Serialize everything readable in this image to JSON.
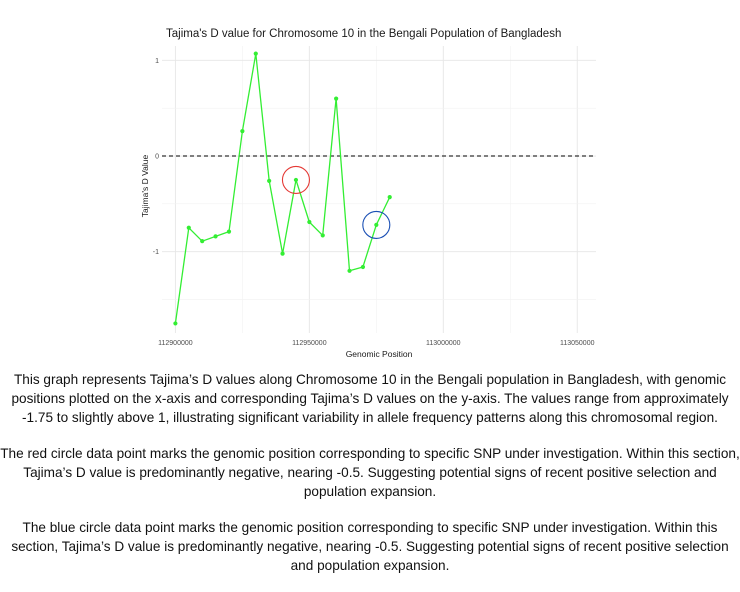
{
  "chart_data": {
    "type": "line",
    "title": "Tajima's D value for Chromosome 10 in the Bengali Population of Bangladesh",
    "xlabel": "Genomic Position",
    "ylabel": "Tajima's D Value",
    "xlim": [
      112895000,
      113057000
    ],
    "ylim": [
      -1.85,
      1.15
    ],
    "xticks": [
      112900000,
      112950000,
      113000000,
      113050000
    ],
    "xtick_labels": [
      "112900000",
      "112950000",
      "113000000",
      "113050000"
    ],
    "yticks": [
      1,
      0,
      -1
    ],
    "ytick_labels": [
      "1",
      "0",
      "-1"
    ],
    "grid": true,
    "reference_line": {
      "y": 0,
      "style": "dashed",
      "color": "#333333"
    },
    "series": [
      {
        "color": "#33ee33",
        "points": [
          {
            "x": 112900000,
            "y": -1.75
          },
          {
            "x": 112905000,
            "y": -0.75
          },
          {
            "x": 112910000,
            "y": -0.89
          },
          {
            "x": 112915000,
            "y": -0.84
          },
          {
            "x": 112920000,
            "y": -0.79
          },
          {
            "x": 112925000,
            "y": 0.26
          },
          {
            "x": 112930000,
            "y": 1.07
          },
          {
            "x": 112935000,
            "y": -0.26
          },
          {
            "x": 112940000,
            "y": -1.02
          },
          {
            "x": 112945000,
            "y": -0.25
          },
          {
            "x": 112950000,
            "y": -0.69
          },
          {
            "x": 112955000,
            "y": -0.83
          },
          {
            "x": 112960000,
            "y": 0.6
          },
          {
            "x": 112965000,
            "y": -1.2
          },
          {
            "x": 112970000,
            "y": -1.16
          },
          {
            "x": 112975000,
            "y": -0.72
          },
          {
            "x": 112980000,
            "y": -0.43
          }
        ]
      }
    ],
    "highlights": [
      {
        "x": 112945000,
        "y": -0.25,
        "color": "#e53935"
      },
      {
        "x": 112975000,
        "y": -0.72,
        "color": "#1a4fb4"
      }
    ]
  },
  "captions": [
    "This graph represents Tajima’s D values along Chromosome 10 in the Bengali population in Bangladesh, with genomic positions plotted on the x-axis and corresponding Tajima’s D values on the y-axis. The values range from approximately -1.75 to slightly above 1, illustrating significant variability in allele frequency patterns along this chromosomal region.",
    "The red circle data point marks the genomic position corresponding to specific SNP under investigation. Within this section, Tajima’s D value is predominantly negative, nearing -0.5. Suggesting potential signs of recent positive selection and population expansion.",
    "The blue circle data point marks the genomic position corresponding to specific SNP under investigation. Within this section, Tajima’s D value is predominantly negative, nearing -0.5. Suggesting potential signs of recent positive selection and population expansion."
  ]
}
